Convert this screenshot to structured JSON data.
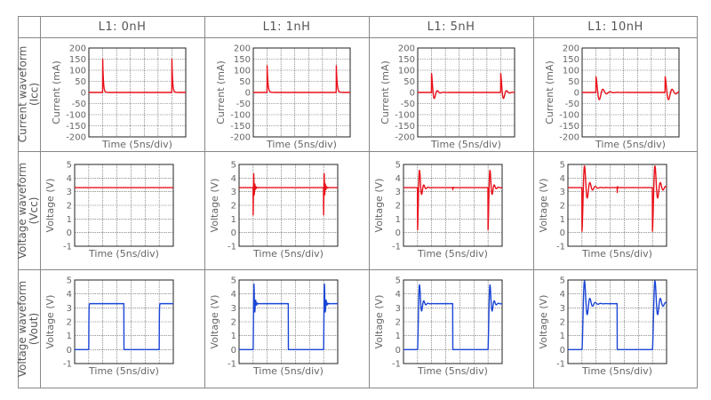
{
  "columns": [
    "L1: 0nH",
    "L1: 1nH",
    "L1: 5nH",
    "L1: 10nH"
  ],
  "rows": [
    {
      "label_line1": "Current waveform",
      "label_line2": "(Icc)"
    },
    {
      "label_line1": "Voltage waveform",
      "label_line2": "(Vcc)"
    },
    {
      "label_line1": "Voltage waveform",
      "label_line2": "(Vout)"
    }
  ],
  "colors": {
    "current": "#e8101a",
    "vcc": "#e8101a",
    "vout": "#1a45d6",
    "grid": "#777777",
    "border": "#888888"
  },
  "chart_data": [
    {
      "type": "line",
      "row": 0,
      "col": 0,
      "kind": "current",
      "xlabel": "Time (5ns/div)",
      "ylabel": "Current (mA)",
      "xlim": [
        0,
        35
      ],
      "ylim": [
        -200,
        200
      ],
      "yticks": [
        "200",
        "150",
        "100",
        "50",
        "0",
        "-50",
        "-100",
        "-150",
        "-200"
      ],
      "grid": true,
      "events": [
        {
          "t": 5,
          "amp": 150,
          "tau": 0.25,
          "period": 0
        },
        {
          "t": 30,
          "amp": 150,
          "tau": 0.25,
          "period": 0
        }
      ]
    },
    {
      "type": "line",
      "row": 0,
      "col": 1,
      "kind": "current",
      "xlabel": "Time (5ns/div)",
      "ylabel": "Current (mA)",
      "xlim": [
        0,
        35
      ],
      "ylim": [
        -200,
        200
      ],
      "yticks": [
        "200",
        "150",
        "100",
        "50",
        "0",
        "-50",
        "-100",
        "-150",
        "-200"
      ],
      "grid": true,
      "events": [
        {
          "t": 5,
          "amp": 120,
          "tau": 0.3,
          "period": 0
        },
        {
          "t": 30,
          "amp": 120,
          "tau": 0.3,
          "period": 0
        }
      ]
    },
    {
      "type": "line",
      "row": 0,
      "col": 2,
      "kind": "current",
      "xlabel": "Time (5ns/div)",
      "ylabel": "Current (mA)",
      "xlim": [
        0,
        35
      ],
      "ylim": [
        -200,
        200
      ],
      "yticks": [
        "200",
        "150",
        "100",
        "50",
        "0",
        "-50",
        "-100",
        "-150",
        "-200"
      ],
      "grid": true,
      "events": [
        {
          "t": 5,
          "amp": 85,
          "tau": 0.9,
          "period": 2.2
        },
        {
          "t": 30,
          "amp": 85,
          "tau": 0.9,
          "period": 2.2
        }
      ]
    },
    {
      "type": "line",
      "row": 0,
      "col": 3,
      "kind": "current",
      "xlabel": "Time (5ns/div)",
      "ylabel": "Current (mA)",
      "xlim": [
        0,
        35
      ],
      "ylim": [
        -200,
        200
      ],
      "yticks": [
        "200",
        "150",
        "100",
        "50",
        "0",
        "-50",
        "-100",
        "-150",
        "-200"
      ],
      "grid": true,
      "events": [
        {
          "t": 5,
          "amp": 70,
          "tau": 1.6,
          "period": 2.6
        },
        {
          "t": 30,
          "amp": 70,
          "tau": 1.6,
          "period": 2.6
        }
      ]
    },
    {
      "type": "line",
      "row": 1,
      "col": 0,
      "kind": "vcc",
      "xlabel": "Time (5ns/div)",
      "ylabel": "Voltage (V)",
      "xlim": [
        0,
        35
      ],
      "ylim": [
        -1,
        5
      ],
      "yticks": [
        "5",
        "4",
        "3",
        "2",
        "1",
        "0",
        "-1"
      ],
      "grid": true,
      "baseline": 3.3,
      "events": []
    },
    {
      "type": "line",
      "row": 1,
      "col": 1,
      "kind": "vcc",
      "xlabel": "Time (5ns/div)",
      "ylabel": "Voltage (V)",
      "xlim": [
        0,
        35
      ],
      "ylim": [
        -1,
        5
      ],
      "yticks": [
        "5",
        "4",
        "3",
        "2",
        "1",
        "0",
        "-1"
      ],
      "grid": true,
      "baseline": 3.3,
      "events": [
        {
          "t": 5,
          "amp": 2.0,
          "tau": 0.3,
          "period": 0.4
        },
        {
          "t": 30,
          "amp": 2.0,
          "tau": 0.3,
          "period": 0.4
        }
      ]
    },
    {
      "type": "line",
      "row": 1,
      "col": 2,
      "kind": "vcc",
      "xlabel": "Time (5ns/div)",
      "ylabel": "Voltage (V)",
      "xlim": [
        0,
        35
      ],
      "ylim": [
        -1,
        5
      ],
      "yticks": [
        "5",
        "4",
        "3",
        "2",
        "1",
        "0",
        "-1"
      ],
      "grid": true,
      "baseline": 3.3,
      "events": [
        {
          "t": 5,
          "amp": 3.1,
          "tau": 0.8,
          "period": 1.5
        },
        {
          "t": 17.5,
          "amp": 0.15,
          "tau": 0.1,
          "period": 0.3
        },
        {
          "t": 30,
          "amp": 3.1,
          "tau": 0.8,
          "period": 1.5
        }
      ]
    },
    {
      "type": "line",
      "row": 1,
      "col": 3,
      "kind": "vcc",
      "xlabel": "Time (5ns/div)",
      "ylabel": "Voltage (V)",
      "xlim": [
        0,
        35
      ],
      "ylim": [
        -1,
        5
      ],
      "yticks": [
        "5",
        "4",
        "3",
        "2",
        "1",
        "0",
        "-1"
      ],
      "grid": true,
      "baseline": 3.3,
      "events": [
        {
          "t": 5,
          "amp": 3.2,
          "tau": 1.3,
          "period": 1.9
        },
        {
          "t": 17.5,
          "amp": 0.35,
          "tau": 0.1,
          "period": 0.3
        },
        {
          "t": 30,
          "amp": 3.2,
          "tau": 1.3,
          "period": 1.9
        }
      ]
    },
    {
      "type": "line",
      "row": 2,
      "col": 0,
      "kind": "vout",
      "xlabel": "Time (5ns/div)",
      "ylabel": "Voltage (V)",
      "xlim": [
        0,
        35
      ],
      "ylim": [
        -1,
        5
      ],
      "yticks": [
        "5",
        "4",
        "3",
        "2",
        "1",
        "0",
        "-1"
      ],
      "grid": true,
      "high": 3.3,
      "rise": [
        5,
        30
      ],
      "fall": [
        17.5
      ],
      "tau": 0.05,
      "period": 0
    },
    {
      "type": "line",
      "row": 2,
      "col": 1,
      "kind": "vout",
      "xlabel": "Time (5ns/div)",
      "ylabel": "Voltage (V)",
      "xlim": [
        0,
        35
      ],
      "ylim": [
        -1,
        5
      ],
      "yticks": [
        "5",
        "4",
        "3",
        "2",
        "1",
        "0",
        "-1"
      ],
      "grid": true,
      "high": 3.3,
      "rise": [
        5,
        30
      ],
      "fall": [
        17.5
      ],
      "tau": 0.35,
      "period": 0.6
    },
    {
      "type": "line",
      "row": 2,
      "col": 2,
      "kind": "vout",
      "xlabel": "Time (5ns/div)",
      "ylabel": "Voltage (V)",
      "xlim": [
        0,
        35
      ],
      "ylim": [
        -1,
        5
      ],
      "yticks": [
        "5",
        "4",
        "3",
        "2",
        "1",
        "0",
        "-1"
      ],
      "grid": true,
      "high": 3.3,
      "rise": [
        5,
        30
      ],
      "fall": [
        17.5
      ],
      "tau": 0.8,
      "period": 1.5
    },
    {
      "type": "line",
      "row": 2,
      "col": 3,
      "kind": "vout",
      "xlabel": "Time (5ns/div)",
      "ylabel": "Voltage (V)",
      "xlim": [
        0,
        35
      ],
      "ylim": [
        -1,
        5
      ],
      "yticks": [
        "5",
        "4",
        "3",
        "2",
        "1",
        "0",
        "-1"
      ],
      "grid": true,
      "high": 3.3,
      "rise": [
        5,
        30
      ],
      "fall": [
        17.5
      ],
      "tau": 1.3,
      "period": 1.9
    }
  ]
}
